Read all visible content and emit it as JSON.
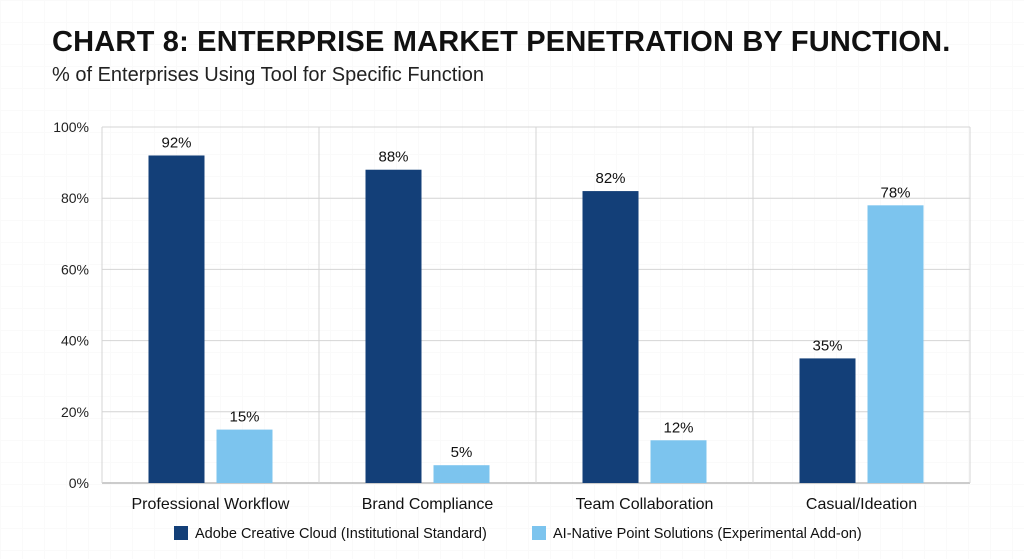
{
  "title": "CHART 8: ENTERPRISE MARKET PENETRATION BY FUNCTION.",
  "subtitle": "% of Enterprises Using Tool for Specific Function",
  "chart_data": {
    "type": "bar",
    "title": "CHART 8: ENTERPRISE MARKET PENETRATION BY FUNCTION.",
    "subtitle": "% of Enterprises Using Tool for Specific Function",
    "categories": [
      "Professional Workflow",
      "Brand Compliance",
      "Team Collaboration",
      "Casual/Ideation"
    ],
    "series": [
      {
        "name": "Adobe Creative Cloud (Institutional Standard)",
        "values": [
          92,
          88,
          82,
          35
        ],
        "color": "#133f78"
      },
      {
        "name": "AI-Native Point Solutions (Experimental Add-on)",
        "values": [
          15,
          5,
          12,
          78
        ],
        "color": "#7cc4ee"
      }
    ],
    "data_labels": [
      [
        "92%",
        "88%",
        "82%",
        "35%"
      ],
      [
        "15%",
        "5%",
        "12%",
        "78%"
      ]
    ],
    "yticks": [
      "0%",
      "20%",
      "40%",
      "60%",
      "80%",
      "100%"
    ],
    "ylim": [
      0,
      100
    ],
    "xlabel": "",
    "ylabel": "",
    "grid": true,
    "legend_position": "bottom"
  }
}
